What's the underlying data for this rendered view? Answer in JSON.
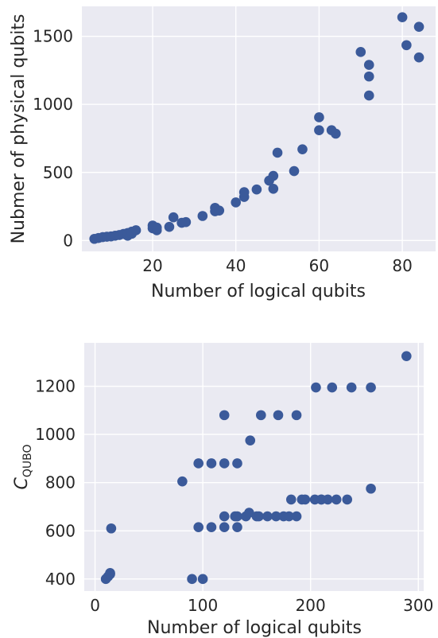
{
  "chart_data": [
    {
      "type": "scatter",
      "title": "",
      "xlabel": "Number of logical qubits",
      "ylabel": "Nubmer of physical qubits",
      "xlim": [
        3,
        88
      ],
      "ylim": [
        -80,
        1720
      ],
      "xticks": [
        20,
        40,
        60,
        80
      ],
      "yticks": [
        0,
        500,
        1000,
        1500
      ],
      "x": [
        6,
        7,
        8,
        9,
        10,
        11,
        12,
        13,
        14,
        14,
        15,
        15,
        16,
        20,
        20,
        21,
        21,
        24,
        25,
        27,
        28,
        32,
        35,
        35,
        36,
        40,
        42,
        42,
        45,
        48,
        49,
        49,
        50,
        54,
        56,
        60,
        60,
        63,
        64,
        70,
        72,
        72,
        72,
        80,
        81,
        84,
        84
      ],
      "y": [
        12,
        18,
        25,
        28,
        30,
        35,
        40,
        48,
        35,
        55,
        50,
        65,
        75,
        110,
        90,
        75,
        95,
        100,
        170,
        130,
        135,
        180,
        240,
        215,
        220,
        280,
        320,
        355,
        375,
        440,
        380,
        475,
        645,
        510,
        670,
        905,
        810,
        810,
        785,
        1385,
        1290,
        1205,
        1065,
        1640,
        1435,
        1570,
        1345
      ],
      "marker_color": "#3b5a9a",
      "grid": true
    },
    {
      "type": "scatter",
      "title": "",
      "xlabel": "Number of logical qubits",
      "ylabel": "C",
      "ylabel_subscript": "QUBO",
      "xlim": [
        -10,
        305
      ],
      "ylim": [
        350,
        1380
      ],
      "xticks": [
        0,
        100,
        200,
        300
      ],
      "yticks": [
        400,
        600,
        800,
        1000,
        1200
      ],
      "x": [
        10,
        12,
        14,
        14,
        15,
        81,
        90,
        96,
        96,
        100,
        108,
        108,
        120,
        120,
        120,
        120,
        130,
        132,
        132,
        132,
        140,
        143,
        144,
        150,
        152,
        154,
        160,
        168,
        170,
        175,
        180,
        182,
        187,
        187,
        192,
        195,
        204,
        205,
        210,
        210,
        216,
        220,
        224,
        234,
        238,
        256,
        256,
        289
      ],
      "y": [
        400,
        410,
        420,
        425,
        610,
        805,
        400,
        615,
        880,
        400,
        615,
        880,
        615,
        660,
        880,
        1080,
        660,
        615,
        660,
        880,
        660,
        675,
        975,
        660,
        660,
        1080,
        660,
        660,
        1080,
        660,
        660,
        730,
        660,
        1080,
        730,
        730,
        730,
        1195,
        730,
        730,
        730,
        1195,
        730,
        730,
        1195,
        775,
        1195,
        1325
      ],
      "marker_color": "#3b5a9a",
      "grid": true
    }
  ]
}
